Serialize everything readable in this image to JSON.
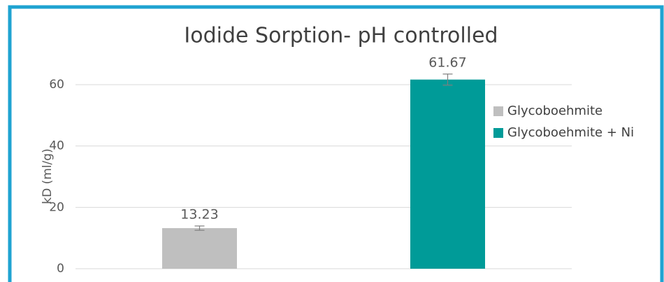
{
  "chart_data": {
    "type": "bar",
    "title": "Iodide Sorption- pH controlled",
    "y_label": "kD (ml/g)",
    "categories": [
      null
    ],
    "series": [
      {
        "name": "Glycoboehmite",
        "color": "#bfbfbf",
        "values": [
          13.23
        ],
        "errors": [
          0.7
        ]
      },
      {
        "name": "Glycoboehmite + Ni",
        "color": "#009b98",
        "values": [
          61.67
        ],
        "errors": [
          1.8
        ]
      }
    ],
    "ylim": [
      0,
      70
    ],
    "yticks": [
      0,
      20,
      40,
      60
    ],
    "grid": true,
    "legend": "right"
  }
}
